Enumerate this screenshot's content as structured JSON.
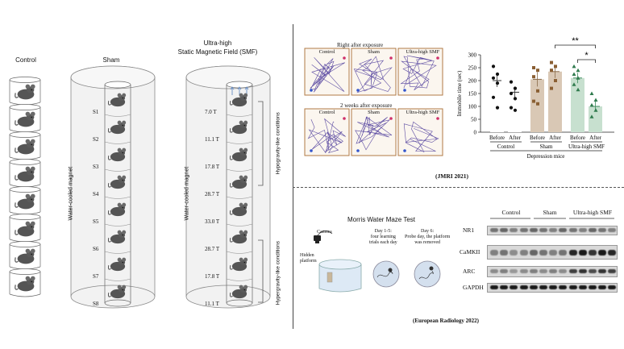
{
  "left_panel": {
    "control_label": "Control",
    "sham_label": "Sham",
    "smf_title_line1": "Ultra-high",
    "smf_title_line2": "Static Magnetic Field (SMF)",
    "magnet_label": "Water-cooled magnet",
    "sham_positions": [
      "S1",
      "S2",
      "S3",
      "S4",
      "S5",
      "S6",
      "S7",
      "S8"
    ],
    "smf_fields": [
      "7.0 T",
      "11.1 T",
      "17.8 T",
      "28.7 T",
      "33.0 T",
      "28.7 T",
      "17.8 T",
      "11.1 T"
    ],
    "hypogravity_label": "Hypogravity-like conditions",
    "hypergravity_label": "Hypergravity-like conditions"
  },
  "jmri_panel": {
    "right_after_title": "Right after exposure",
    "two_weeks_title": "2 weeks after exposure",
    "groups": [
      "Control",
      "Sham",
      "Ultra-high SMF"
    ],
    "citation": "(JMRI 2021)",
    "chart_data": {
      "type": "bar",
      "ylabel": "Immobile time (sec)",
      "ylim": [
        0,
        300
      ],
      "yticks": [
        0,
        50,
        100,
        150,
        200,
        250,
        300
      ],
      "groups": [
        "Control",
        "Sham",
        "Ultra-high SMF"
      ],
      "xlabel": "Depression mice",
      "bars": [
        {
          "group": "Control",
          "label": "Before",
          "value": 200,
          "err": 25,
          "color": "#ffffff",
          "points": [
            255,
            225,
            210,
            190,
            135,
            95
          ]
        },
        {
          "group": "Control",
          "label": "After",
          "value": 155,
          "err": 22,
          "color": "#ffffff",
          "points": [
            195,
            170,
            150,
            130,
            95,
            85
          ]
        },
        {
          "group": "Sham",
          "label": "Before",
          "value": 205,
          "err": 28,
          "color": "#d9c8b5",
          "points": [
            250,
            240,
            215,
            160,
            120,
            110
          ]
        },
        {
          "group": "Sham",
          "label": "After",
          "value": 235,
          "err": 25,
          "color": "#d9c8b5",
          "points": [
            270,
            255,
            240,
            200,
            170
          ]
        },
        {
          "group": "Ultra-high SMF",
          "label": "Before",
          "value": 210,
          "err": 20,
          "color": "#c7e0cf",
          "points": [
            255,
            240,
            225,
            210,
            185,
            165
          ]
        },
        {
          "group": "Ultra-high SMF",
          "label": "After",
          "value": 100,
          "err": 20,
          "color": "#c7e0cf",
          "points": [
            150,
            125,
            105,
            85,
            60
          ]
        }
      ],
      "annotations": [
        "**",
        "*"
      ]
    }
  },
  "er_panel": {
    "maze_title": "Morris Water Maze Test",
    "camera_label": "Camera",
    "hidden_platform_label": "Hidden\nplatform",
    "day1_label": "Day 1-5:\nfour learning\ntrials each day",
    "day6_label": "Day 6:\nProbe day, the platform\nwas removed",
    "blot_groups": [
      "Control",
      "Sham",
      "Ultra-high SMF"
    ],
    "blot_rows": [
      "NR1",
      "CaMKII",
      "ARC",
      "GAPDH"
    ],
    "citation": "(European Radiology 2022)"
  }
}
